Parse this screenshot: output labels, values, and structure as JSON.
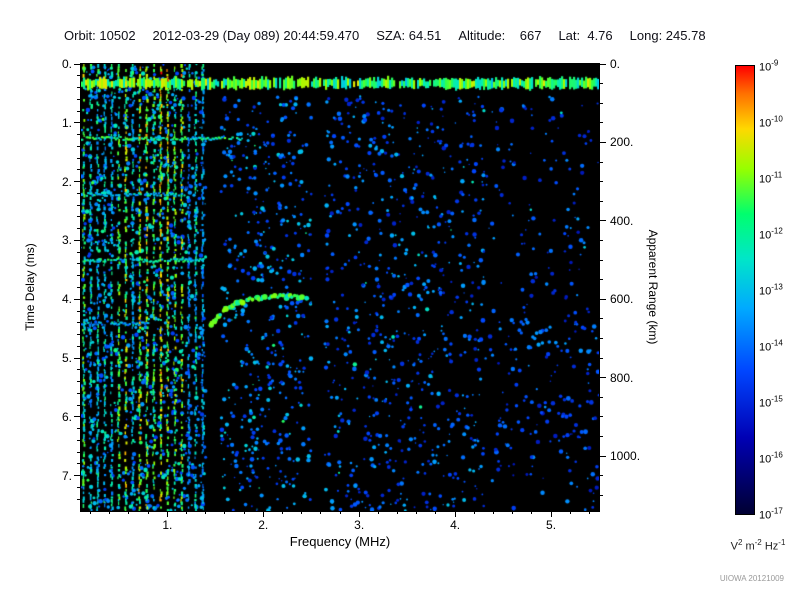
{
  "header": {
    "segments": [
      "Orbit: 10502",
      "2012-03-29 (Day 089) 20:44:59.470",
      "SZA: 64.51",
      "Altitude:    667",
      "Lat:  4.76",
      "Long: 245.78"
    ]
  },
  "axes": {
    "x": {
      "label": "Frequency (MHz)",
      "min": 0.1,
      "max": 5.5,
      "major_values": [
        1,
        2,
        3,
        4,
        5
      ],
      "major_labels": [
        "1.",
        "2.",
        "3.",
        "4.",
        "5."
      ],
      "minor_step": 0.2
    },
    "y_left": {
      "label": "Time Delay (ms)",
      "min": 0,
      "max": 7.6,
      "major_values": [
        0,
        1,
        2,
        3,
        4,
        5,
        6,
        7
      ],
      "major_labels": [
        "0.",
        "1.",
        "2.",
        "3.",
        "4.",
        "5.",
        "6.",
        "7."
      ],
      "minor_step": 0.2
    },
    "y_right": {
      "label": "Apparent Range (km)",
      "km_per_ms": 150,
      "major_values": [
        0,
        200,
        400,
        600,
        800,
        1000
      ],
      "major_labels": [
        "0.",
        "200.",
        "400.",
        "600.",
        "800.",
        "1000."
      ],
      "minor_step": 50
    }
  },
  "colorbar": {
    "base": "10",
    "exponents": [
      "-9",
      "-10",
      "-11",
      "-12",
      "-13",
      "-14",
      "-15",
      "-16",
      "-17"
    ],
    "unit_parts": [
      [
        "V",
        "2"
      ],
      [
        "m",
        "-2"
      ],
      [
        "Hz",
        "-1"
      ]
    ],
    "stops": [
      {
        "c": "#ff0000",
        "p": 0
      },
      {
        "c": "#ff6e00",
        "p": 6
      },
      {
        "c": "#ffd800",
        "p": 14
      },
      {
        "c": "#96ff00",
        "p": 23
      },
      {
        "c": "#00ff6e",
        "p": 33
      },
      {
        "c": "#00e6c8",
        "p": 43
      },
      {
        "c": "#00aaff",
        "p": 54
      },
      {
        "c": "#0046ff",
        "p": 68
      },
      {
        "c": "#0000b4",
        "p": 83
      },
      {
        "c": "#000032",
        "p": 100
      }
    ]
  },
  "credit": "UIOWA 20121009",
  "chart_data": {
    "type": "heatmap",
    "title": "",
    "xlabel": "Frequency (MHz)",
    "ylabel": "Time Delay (ms)",
    "ylabel_right": "Apparent Range (km)",
    "zlabel": "V^2 m^-2 Hz^-1",
    "xlim": [
      0.1,
      5.5
    ],
    "ylim": [
      0,
      7.6
    ],
    "range_lim_km": [
      0,
      1140
    ],
    "z_decades": [
      -17,
      -9
    ],
    "seed": 20121009,
    "colormap": [
      [
        0,
        0,
        0,
        40
      ],
      [
        0.15,
        0,
        0,
        150
      ],
      [
        0.3,
        0,
        70,
        255
      ],
      [
        0.45,
        0,
        170,
        255
      ],
      [
        0.55,
        0,
        235,
        190
      ],
      [
        0.65,
        40,
        255,
        80
      ],
      [
        0.75,
        150,
        255,
        0
      ],
      [
        0.85,
        255,
        220,
        0
      ],
      [
        0.93,
        255,
        110,
        0
      ],
      [
        1,
        255,
        0,
        0
      ]
    ],
    "features": {
      "direct_signal": {
        "y_ms": 0.33,
        "thickness_ms": 0.18,
        "x_range": [
          0.1,
          5.5
        ],
        "intensity": 0.62
      },
      "harmonic_stripes": {
        "x_start": 0.12,
        "x_end": 1.38,
        "spacing_mhz": 0.073,
        "intensity": 0.6
      },
      "echo_lines": [
        {
          "y_ms": 1.25,
          "x_range": [
            0.1,
            1.78
          ],
          "intensity": 0.58
        },
        {
          "y_ms": 2.2,
          "x_range": [
            0.1,
            1.15
          ],
          "intensity": 0.48
        },
        {
          "y_ms": 3.32,
          "x_range": [
            0.1,
            1.38
          ],
          "intensity": 0.54
        },
        {
          "y_ms": 4.4,
          "x_range": [
            0.1,
            0.8
          ],
          "intensity": 0.42
        }
      ],
      "ionosphere_trace": {
        "points": [
          [
            1.45,
            4.45
          ],
          [
            1.62,
            4.15
          ],
          [
            1.85,
            4.0
          ],
          [
            2.15,
            3.95
          ],
          [
            2.45,
            3.97
          ]
        ],
        "intensity": 0.64
      },
      "noise_regions": [
        {
          "x_range": [
            0.1,
            1.4
          ],
          "y_range": [
            0,
            7.6
          ],
          "density": 0.55,
          "intensity": [
            0.28,
            0.58
          ]
        },
        {
          "x_range": [
            1.56,
            2.5
          ],
          "y_range": [
            0.55,
            7.6
          ],
          "density": 0.4,
          "intensity": [
            0.25,
            0.52
          ]
        },
        {
          "x_range": [
            2.64,
            4.3
          ],
          "y_range": [
            0.55,
            7.6
          ],
          "density": 0.32,
          "intensity": [
            0.22,
            0.48
          ]
        },
        {
          "x_range": [
            4.3,
            5.5
          ],
          "y_range": [
            0.55,
            7.6
          ],
          "density": 0.14,
          "intensity": [
            0.2,
            0.42
          ]
        }
      ],
      "right_bands": [
        {
          "y_ms": 4.65,
          "x_range": [
            4.25,
            5.5
          ],
          "thickness_ms": 0.3,
          "intensity": 0.36
        },
        {
          "y_ms": 5.95,
          "x_range": [
            4.4,
            5.5
          ],
          "thickness_ms": 0.35,
          "intensity": 0.3
        }
      ],
      "dark_columns": [
        [
          1.4,
          1.56
        ],
        [
          2.5,
          2.64
        ]
      ]
    }
  }
}
